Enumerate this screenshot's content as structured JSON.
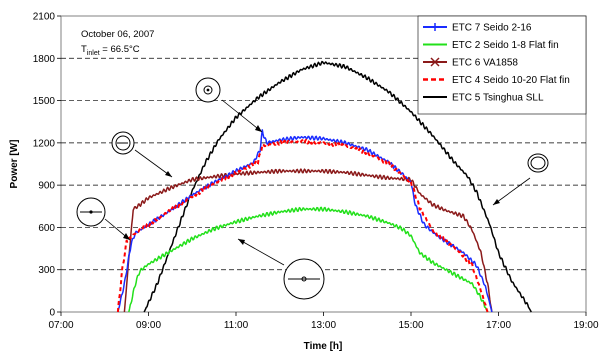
{
  "chart_data": {
    "type": "line",
    "xlabel": "Time [h]",
    "ylabel": "Power  [W]",
    "x_ticks": [
      "07:00",
      "09:00",
      "11:00",
      "13:00",
      "15:00",
      "17:00",
      "19:00"
    ],
    "y_ticks": [
      "0",
      "300",
      "600",
      "900",
      "1200",
      "1500",
      "1800",
      "2100"
    ],
    "xlim_hours": [
      7,
      19
    ],
    "ylim": [
      0,
      2100
    ],
    "grid": "horizontal dashed",
    "legend_position": "top-right",
    "annotation": {
      "date": "October 06, 2007",
      "tinlet_prefix": "T",
      "tinlet_sub": "inlet",
      "tinlet_suffix": " = 66.5°C"
    },
    "series": [
      {
        "name": "ETC 7 Seido 2-16",
        "color": "#1a2cff",
        "style": "solid-marker",
        "points": [
          [
            8.3,
            0
          ],
          [
            8.45,
            200
          ],
          [
            8.6,
            480
          ],
          [
            8.7,
            560
          ],
          [
            9.0,
            620
          ],
          [
            9.5,
            720
          ],
          [
            10.0,
            830
          ],
          [
            10.5,
            920
          ],
          [
            11.0,
            1000
          ],
          [
            11.4,
            1060
          ],
          [
            11.55,
            1150
          ],
          [
            11.6,
            1280
          ],
          [
            11.7,
            1200
          ],
          [
            12.0,
            1220
          ],
          [
            12.5,
            1240
          ],
          [
            13.0,
            1230
          ],
          [
            13.5,
            1200
          ],
          [
            14.0,
            1150
          ],
          [
            14.5,
            1060
          ],
          [
            14.8,
            980
          ],
          [
            15.0,
            920
          ],
          [
            15.1,
            760
          ],
          [
            15.3,
            620
          ],
          [
            15.6,
            540
          ],
          [
            15.9,
            480
          ],
          [
            16.2,
            420
          ],
          [
            16.5,
            330
          ],
          [
            16.7,
            180
          ],
          [
            16.85,
            0
          ]
        ]
      },
      {
        "name": "ETC 2 Seido 1-8 Flat fin",
        "color": "#22e01a",
        "style": "solid",
        "points": [
          [
            8.55,
            0
          ],
          [
            8.7,
            200
          ],
          [
            8.8,
            290
          ],
          [
            9.0,
            340
          ],
          [
            9.5,
            430
          ],
          [
            10.0,
            520
          ],
          [
            10.5,
            590
          ],
          [
            11.0,
            640
          ],
          [
            11.5,
            680
          ],
          [
            12.0,
            710
          ],
          [
            12.5,
            730
          ],
          [
            13.0,
            730
          ],
          [
            13.5,
            710
          ],
          [
            14.0,
            680
          ],
          [
            14.5,
            630
          ],
          [
            14.8,
            590
          ],
          [
            15.0,
            540
          ],
          [
            15.2,
            420
          ],
          [
            15.5,
            350
          ],
          [
            15.8,
            300
          ],
          [
            16.1,
            250
          ],
          [
            16.4,
            200
          ],
          [
            16.6,
            100
          ],
          [
            16.75,
            0
          ]
        ]
      },
      {
        "name": "ETC 6 VA1858",
        "color": "#8b1a1a",
        "style": "solid-marker",
        "points": [
          [
            8.45,
            0
          ],
          [
            8.55,
            380
          ],
          [
            8.65,
            730
          ],
          [
            8.8,
            760
          ],
          [
            9.0,
            810
          ],
          [
            9.5,
            880
          ],
          [
            10.0,
            940
          ],
          [
            10.5,
            960
          ],
          [
            11.0,
            980
          ],
          [
            11.5,
            990
          ],
          [
            12.0,
            1000
          ],
          [
            12.5,
            1000
          ],
          [
            13.0,
            1000
          ],
          [
            13.5,
            990
          ],
          [
            14.0,
            970
          ],
          [
            14.5,
            950
          ],
          [
            15.0,
            940
          ],
          [
            15.2,
            840
          ],
          [
            15.5,
            760
          ],
          [
            15.8,
            720
          ],
          [
            16.0,
            700
          ],
          [
            16.2,
            680
          ],
          [
            16.4,
            580
          ],
          [
            16.6,
            420
          ],
          [
            16.75,
            200
          ],
          [
            16.85,
            0
          ]
        ]
      },
      {
        "name": "ETC 4 Seido 10-20 Flat fin",
        "color": "#ff0000",
        "style": "dashed",
        "points": [
          [
            8.3,
            0
          ],
          [
            8.4,
            300
          ],
          [
            8.5,
            500
          ],
          [
            8.7,
            560
          ],
          [
            9.0,
            620
          ],
          [
            9.5,
            720
          ],
          [
            10.0,
            820
          ],
          [
            10.5,
            910
          ],
          [
            11.0,
            990
          ],
          [
            11.5,
            1060
          ],
          [
            11.6,
            1180
          ],
          [
            12.0,
            1200
          ],
          [
            12.5,
            1210
          ],
          [
            13.0,
            1200
          ],
          [
            13.5,
            1180
          ],
          [
            14.0,
            1130
          ],
          [
            14.5,
            1050
          ],
          [
            15.0,
            920
          ],
          [
            15.2,
            740
          ],
          [
            15.5,
            580
          ],
          [
            15.8,
            500
          ],
          [
            16.1,
            430
          ],
          [
            16.4,
            330
          ],
          [
            16.6,
            150
          ],
          [
            16.75,
            0
          ]
        ]
      },
      {
        "name": "ETC 5 Tsinghua SLL",
        "color": "#000000",
        "style": "solid",
        "points": [
          [
            8.9,
            0
          ],
          [
            9.2,
            200
          ],
          [
            9.5,
            450
          ],
          [
            9.8,
            700
          ],
          [
            10.0,
            860
          ],
          [
            10.3,
            1060
          ],
          [
            10.6,
            1220
          ],
          [
            11.0,
            1380
          ],
          [
            11.5,
            1520
          ],
          [
            12.0,
            1630
          ],
          [
            12.5,
            1720
          ],
          [
            13.0,
            1770
          ],
          [
            13.5,
            1740
          ],
          [
            14.0,
            1660
          ],
          [
            14.5,
            1560
          ],
          [
            15.0,
            1420
          ],
          [
            15.5,
            1250
          ],
          [
            16.0,
            1060
          ],
          [
            16.3,
            960
          ],
          [
            16.5,
            850
          ],
          [
            16.8,
            620
          ],
          [
            17.0,
            420
          ],
          [
            17.3,
            220
          ],
          [
            17.6,
            80
          ],
          [
            17.75,
            0
          ]
        ]
      }
    ]
  }
}
